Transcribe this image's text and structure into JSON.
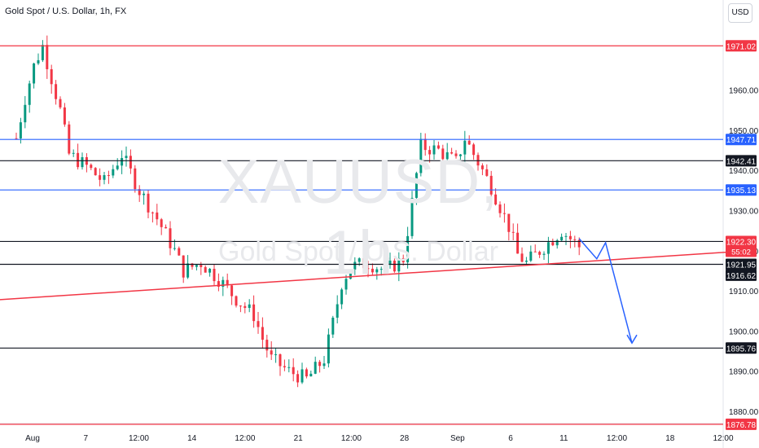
{
  "header": {
    "title": "Gold Spot / U.S. Dollar, 1h, FX",
    "currency": "USD"
  },
  "watermark": {
    "symbol": "XAUUSD, 1h",
    "name": "Gold Spot / U.S. Dollar"
  },
  "chart_data": {
    "type": "candlestick",
    "symbol": "XAUUSD",
    "interval": "1h",
    "ylim": [
      1876,
      1978
    ],
    "y_ticks": [
      1880,
      1890,
      1900,
      1910,
      1920,
      1930,
      1940,
      1950,
      1960
    ],
    "x_ticks": [
      "Aug",
      "7",
      "12:00",
      "14",
      "12:00",
      "21",
      "12:00",
      "28",
      "Sep",
      "6",
      "11",
      "12:00",
      "18",
      "12:00"
    ],
    "grid": false,
    "price_path": [
      [
        0,
        1948
      ],
      [
        1,
        1958
      ],
      [
        2,
        1966
      ],
      [
        3,
        1971
      ],
      [
        4,
        1963
      ],
      [
        5,
        1955
      ],
      [
        6,
        1944
      ],
      [
        8,
        1941
      ],
      [
        10,
        1937
      ],
      [
        12,
        1944
      ],
      [
        14,
        1935
      ],
      [
        16,
        1928
      ],
      [
        18,
        1920
      ],
      [
        19,
        1915
      ],
      [
        21,
        1917
      ],
      [
        23,
        1913
      ],
      [
        25,
        1908
      ],
      [
        27,
        1904
      ],
      [
        28,
        1898
      ],
      [
        29,
        1893
      ],
      [
        31,
        1890
      ],
      [
        33,
        1888
      ],
      [
        35,
        1893
      ],
      [
        36,
        1902
      ],
      [
        37,
        1912
      ],
      [
        38,
        1916
      ],
      [
        40,
        1917
      ],
      [
        42,
        1915
      ],
      [
        44,
        1918
      ],
      [
        45,
        1932
      ],
      [
        46,
        1946
      ],
      [
        48,
        1945
      ],
      [
        50,
        1942
      ],
      [
        51,
        1948
      ],
      [
        52,
        1944
      ],
      [
        54,
        1936
      ],
      [
        56,
        1926
      ],
      [
        57,
        1919
      ],
      [
        58,
        1917
      ],
      [
        60,
        1921
      ],
      [
        62,
        1925
      ],
      [
        63,
        1923
      ],
      [
        64,
        1921
      ]
    ],
    "levels": [
      {
        "price": 1971.02,
        "label": "1971.02",
        "color": "#f23645",
        "badge": "#f23645",
        "text": "#ffffff"
      },
      {
        "price": 1947.71,
        "label": "1947.71",
        "color": "#2962ff",
        "badge": "#2962ff",
        "text": "#ffffff"
      },
      {
        "price": 1942.41,
        "label": "1942.41",
        "color": "#131722",
        "badge": "#131722",
        "text": "#ffffff"
      },
      {
        "price": 1935.13,
        "label": "1935.13",
        "color": "#2962ff",
        "badge": "#2962ff",
        "text": "#ffffff"
      },
      {
        "price": 1922.3,
        "label": "1922.30",
        "color": "#131722",
        "badge": "#f23645",
        "text": "#ffffff",
        "sublabel": "55:02"
      },
      {
        "price": 1916.62,
        "label": "1921.95",
        "color": "#131722",
        "badge": "#131722",
        "text": "#ffffff"
      },
      {
        "price": 1895.76,
        "label": "1895.76",
        "color": "#131722",
        "badge": "#131722",
        "text": "#ffffff"
      },
      {
        "price": 1876.78,
        "label": "1876.78",
        "color": "#f23645",
        "badge": "#f23645",
        "text": "#ffffff"
      }
    ],
    "extra_badges": [
      {
        "price": 1913.9,
        "label": "1916.62",
        "badge": "#131722",
        "text": "#ffffff"
      }
    ],
    "trendline": {
      "from": [
        -4,
        1907.5
      ],
      "to": [
        82,
        1919.8
      ],
      "color": "#f23645"
    },
    "projection": {
      "color": "#2962ff",
      "points": [
        [
          64,
          1923
        ],
        [
          66,
          1918
        ],
        [
          67,
          1922
        ],
        [
          70,
          1897
        ]
      ]
    },
    "colors": {
      "up": "#089981",
      "down": "#f23645"
    }
  }
}
